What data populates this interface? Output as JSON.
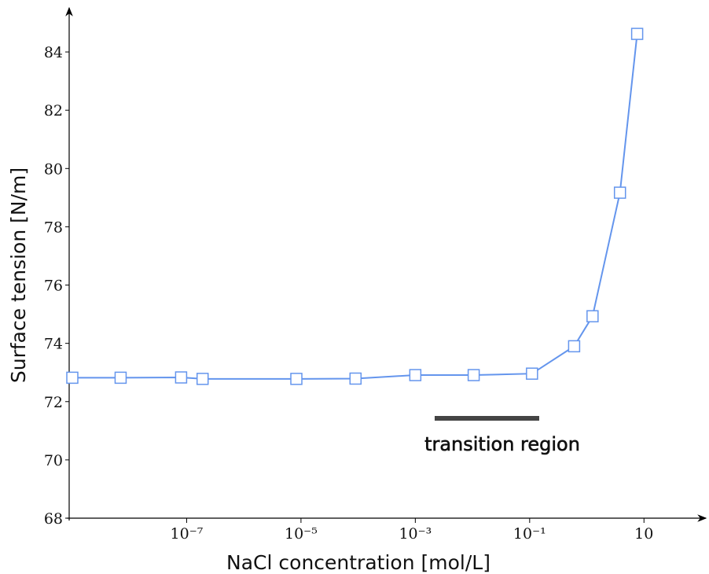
{
  "chart_data": {
    "type": "line",
    "xlabel": "NaCl concentration [mol/L]",
    "ylabel": "Surface tension [N/m]",
    "annotation": "transition region",
    "x_scale": "log",
    "x": [
      1e-09,
      7e-09,
      8e-08,
      1.9e-07,
      8.3e-06,
      9e-05,
      0.001,
      0.0105,
      0.11,
      0.6,
      1.26,
      3.8,
      7.6
    ],
    "series": [
      {
        "name": "Surface tension",
        "color": "#6495ed",
        "values": [
          72.82,
          72.82,
          72.83,
          72.78,
          72.78,
          72.79,
          72.91,
          72.91,
          72.96,
          73.9,
          74.93,
          79.17,
          84.62
        ]
      }
    ],
    "xlim": [
      1e-09,
      100
    ],
    "ylim": [
      68,
      85.2
    ],
    "xticks": [
      {
        "value": 1e-07,
        "label": "10⁻⁷"
      },
      {
        "value": 1e-05,
        "label": "10⁻⁵"
      },
      {
        "value": 0.001,
        "label": "10⁻³"
      },
      {
        "value": 0.1,
        "label": "10⁻¹"
      },
      {
        "value": 10,
        "label": "10"
      }
    ],
    "yticks": [
      68,
      70,
      72,
      74,
      76,
      78,
      80,
      82,
      84
    ]
  }
}
